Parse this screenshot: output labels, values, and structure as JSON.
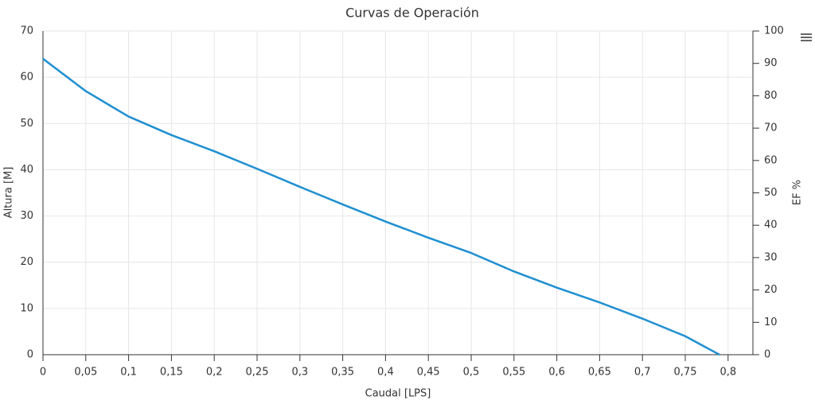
{
  "chart_data": {
    "type": "line",
    "title": "Curvas de Operación",
    "x_label": "Caudal [LPS]",
    "y_label": "Altura [M]",
    "y2_label": "EF %",
    "x": [
      0,
      0.05,
      0.1,
      0.15,
      0.2,
      0.25,
      0.3,
      0.35,
      0.4,
      0.45,
      0.5,
      0.55,
      0.6,
      0.65,
      0.7,
      0.75,
      0.79
    ],
    "values": [
      64,
      57,
      51.5,
      47.5,
      44,
      40.2,
      36.3,
      32.5,
      28.8,
      25.3,
      22,
      18,
      14.5,
      11.3,
      7.8,
      4,
      0
    ],
    "color": "#1f8fd1",
    "xlim": [
      0,
      0.829
    ],
    "xticks": [
      0,
      {
        "value": 0.05,
        "label": "0,05"
      },
      {
        "value": 0.1,
        "label": "0,1"
      },
      {
        "value": 0.15,
        "label": "0,15"
      },
      {
        "value": 0.2,
        "label": "0,2"
      },
      {
        "value": 0.25,
        "label": "0,25"
      },
      {
        "value": 0.3,
        "label": "0,3"
      },
      {
        "value": 0.35,
        "label": "0,35"
      },
      {
        "value": 0.4,
        "label": "0,4"
      },
      {
        "value": 0.45,
        "label": "0,45"
      },
      {
        "value": 0.5,
        "label": "0,5"
      },
      {
        "value": 0.55,
        "label": "0,55"
      },
      {
        "value": 0.6,
        "label": "0,6"
      },
      {
        "value": 0.65,
        "label": "0,65"
      },
      {
        "value": 0.7,
        "label": "0,7"
      },
      {
        "value": 0.75,
        "label": "0,75"
      },
      {
        "value": 0.8,
        "label": "0,8"
      }
    ],
    "ylim": [
      0,
      70
    ],
    "yticks": [
      0,
      10,
      20,
      30,
      40,
      50,
      60,
      70
    ],
    "y2lim": [
      0,
      100
    ],
    "y2ticks": [
      0,
      10,
      20,
      30,
      40,
      50,
      60,
      70,
      80,
      90,
      100
    ],
    "grid": true
  }
}
